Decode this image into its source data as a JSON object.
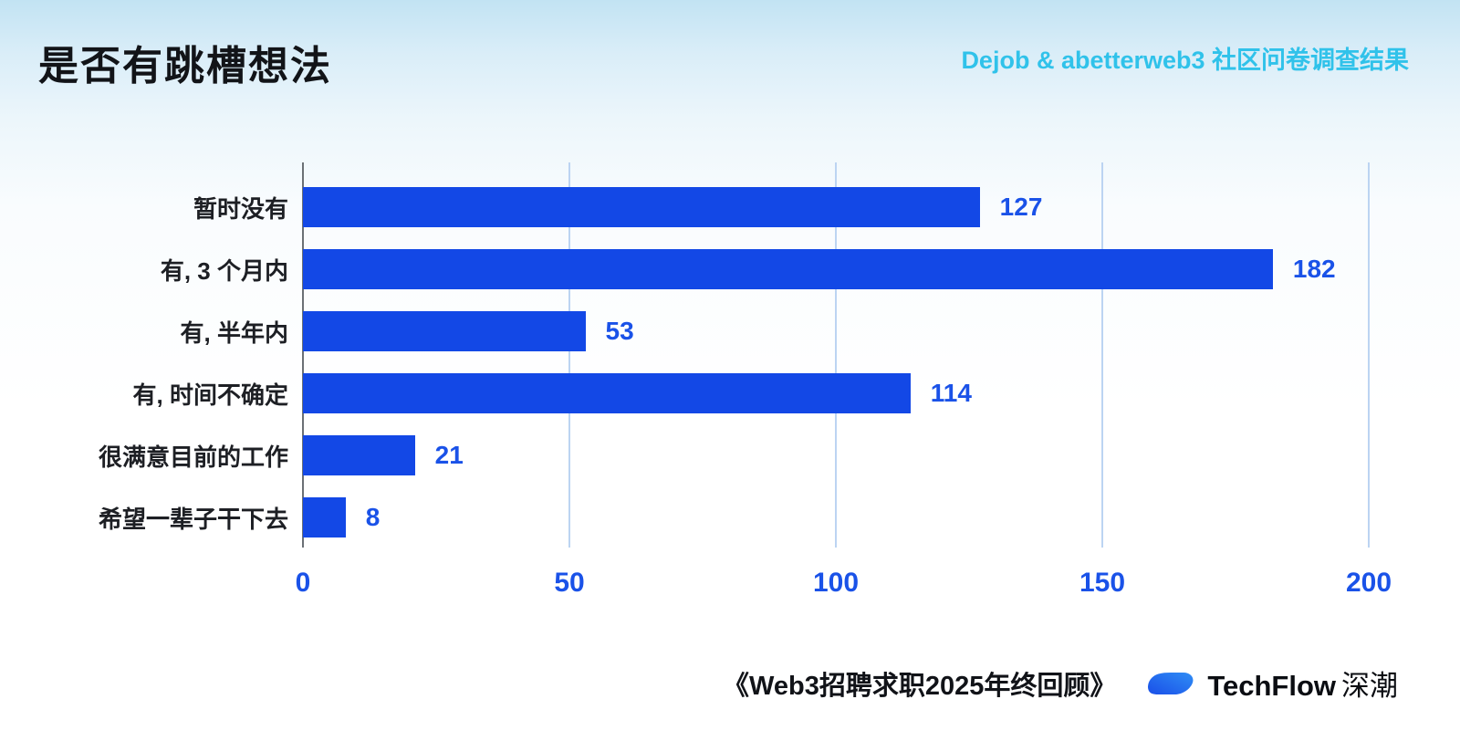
{
  "header": {
    "title": "是否有跳槽想法",
    "subtitle": "Dejob & abetterweb3 社区问卷调查结果"
  },
  "chart_data": {
    "type": "bar",
    "orientation": "horizontal",
    "title": "是否有跳槽想法",
    "categories": [
      "暂时没有",
      "有, 3 个月内",
      "有, 半年内",
      "有, 时间不确定",
      "很满意目前的工作",
      "希望一辈子干下去"
    ],
    "values": [
      127,
      182,
      53,
      114,
      21,
      8
    ],
    "value_labels": [
      "127",
      "182",
      "53",
      "114",
      "21",
      "8"
    ],
    "xlim": [
      0,
      200
    ],
    "x_ticks": [
      "0",
      "50",
      "100",
      "150",
      "200"
    ],
    "grid": true,
    "legend": "none",
    "bar_color": "#1348e6",
    "value_color": "#1a52e8",
    "grid_color": "#bcd4f2",
    "accent_cyan": "#30c2ea"
  },
  "footer": {
    "source": "《Web3招聘求职2025年终回顾》",
    "brand": "TechFlow",
    "brand_suffix": "深潮"
  }
}
